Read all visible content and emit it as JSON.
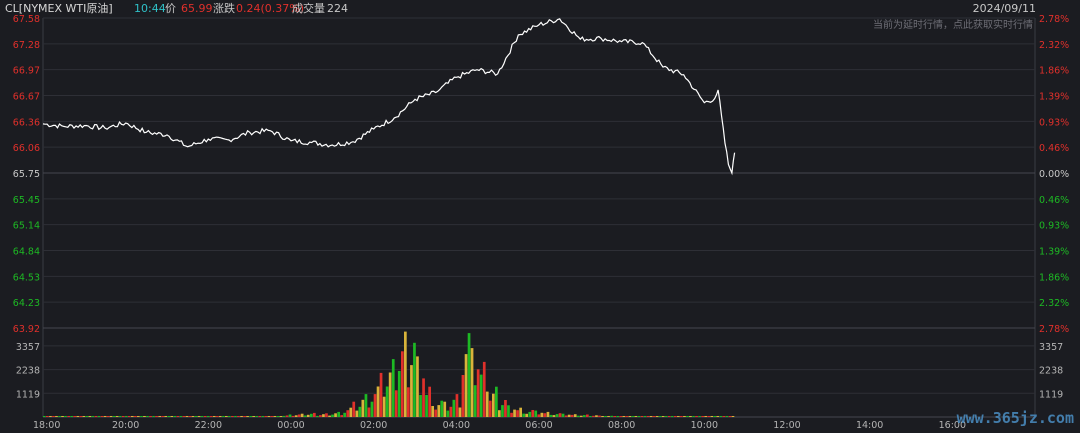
{
  "header": {
    "symbol": "CL[NYMEX WTI原油]",
    "time": "10:44",
    "price_label": "价",
    "price": "65.99",
    "change_label": "涨跌",
    "change": "0.24(0.37%)",
    "volume_label": "成交量",
    "volume": "224",
    "date": "2024/09/11",
    "delay_note": "当前为延时行情，点此获取实时行情"
  },
  "watermark": "www.365jz.com",
  "colors": {
    "background": "#1b1c21",
    "line": "#ffffff",
    "up": "#e0302b",
    "down": "#1db924",
    "neutral": "#c8c8c8",
    "grid": "#2e2f36",
    "accent": "#2fc0c7"
  },
  "chart_data": {
    "type": "line",
    "xlabel": "",
    "ylabel": "",
    "x_ticks": [
      "18:00",
      "20:00",
      "22:00",
      "00:00",
      "02:00",
      "04:00",
      "06:00",
      "08:00",
      "10:00",
      "12:00",
      "14:00",
      "16:00"
    ],
    "ylim": [
      63.92,
      67.58
    ],
    "prev_close": 65.75,
    "y_ticks_left": [
      "67.58",
      "67.28",
      "66.97",
      "66.67",
      "66.36",
      "66.06",
      "65.75",
      "65.45",
      "65.14",
      "64.84",
      "64.53",
      "64.23",
      "63.92"
    ],
    "y_ticks_right": [
      "2.78%",
      "2.32%",
      "1.86%",
      "1.39%",
      "0.93%",
      "0.46%",
      "0.00%",
      "0.46%",
      "0.93%",
      "1.39%",
      "1.86%",
      "2.32%",
      "2.78%"
    ],
    "series": [
      {
        "x": [
          "18:00",
          "18:30",
          "19:00",
          "19:30",
          "20:00",
          "20:30",
          "21:00",
          "21:30",
          "22:00",
          "22:30",
          "23:00",
          "23:30",
          "00:00",
          "00:30",
          "01:00",
          "01:30",
          "02:00",
          "02:30",
          "03:00",
          "03:30",
          "04:00",
          "04:30",
          "05:00",
          "05:30",
          "06:00",
          "06:30",
          "07:00",
          "07:30",
          "08:00",
          "08:30",
          "09:00",
          "09:30",
          "10:00",
          "10:15",
          "10:20",
          "10:25",
          "10:30",
          "10:35",
          "10:40",
          "10:44"
        ],
        "values": [
          66.33,
          66.3,
          66.31,
          66.28,
          66.34,
          66.23,
          66.2,
          66.06,
          66.15,
          66.14,
          66.23,
          66.25,
          66.13,
          66.11,
          66.08,
          66.12,
          66.27,
          66.4,
          66.62,
          66.7,
          66.88,
          66.97,
          66.92,
          67.38,
          67.5,
          67.57,
          67.33,
          67.34,
          67.3,
          67.29,
          67.0,
          66.91,
          66.58,
          66.63,
          66.73,
          66.42,
          66.1,
          65.85,
          65.75,
          65.99
        ]
      }
    ],
    "volume": {
      "yticks": [
        "3357",
        "2238",
        "1119"
      ],
      "ymax": 4200,
      "buckets": [
        5,
        5,
        6,
        5,
        6,
        7,
        5,
        6,
        8,
        7,
        6,
        9,
        8,
        7,
        8,
        10,
        12,
        11,
        14,
        18,
        15,
        20,
        22,
        25,
        30,
        40,
        60,
        90,
        120,
        150,
        130,
        160,
        220,
        400,
        600,
        900,
        1200,
        1600,
        2100,
        3100,
        3500,
        2600,
        1300,
        700,
        600,
        900,
        3300,
        2500,
        2000,
        1100,
        800,
        500,
        400,
        300,
        250,
        200,
        150,
        120,
        100,
        90,
        80,
        60,
        50,
        40,
        35,
        30,
        25,
        20,
        18,
        15,
        12,
        10,
        8,
        6,
        5,
        5
      ]
    }
  }
}
